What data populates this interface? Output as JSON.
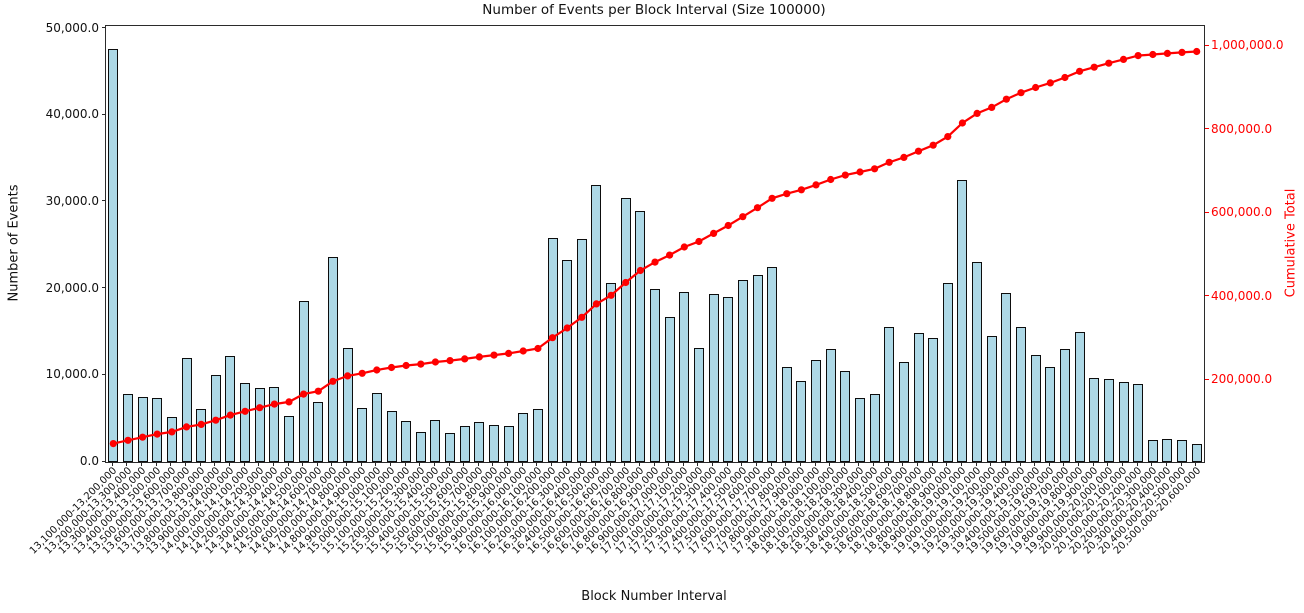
{
  "title": "Number of Events per Block Interval (Size 100000)",
  "axes": {
    "x_label": "Block Number Interval",
    "y_left_label": "Number of Events",
    "y_right_label": "Cumulative Total",
    "y_left_ticks": [
      {
        "value": 0,
        "label": "0.0"
      },
      {
        "value": 10000,
        "label": "10,000.0"
      },
      {
        "value": 20000,
        "label": "20,000.0"
      },
      {
        "value": 30000,
        "label": "30,000.0"
      },
      {
        "value": 40000,
        "label": "40,000.0"
      },
      {
        "value": 50000,
        "label": "50,000.0"
      }
    ],
    "y_right_ticks": [
      {
        "value": 200000,
        "label": "200,000.0"
      },
      {
        "value": 400000,
        "label": "400,000.0"
      },
      {
        "value": 600000,
        "label": "600,000.0"
      },
      {
        "value": 800000,
        "label": "800,000.0"
      },
      {
        "value": 1000000,
        "label": "1,000,000.0"
      }
    ]
  },
  "colors": {
    "bar_fill": "#ADD8E6",
    "bar_edge": "#0d0d0d",
    "line": "#ff0000",
    "right_axis_text": "#ff0000",
    "text": "#111111",
    "spine": "#2b2b2b",
    "background": "#ffffff"
  },
  "chart_data": {
    "type": "bar",
    "title": "Number of Events per Block Interval (Size 100000)",
    "xlabel": "Block Number Interval",
    "ylabel": "Number of Events",
    "ylabel_right": "Cumulative Total",
    "ylim_left": [
      0,
      50000
    ],
    "ylim_right": [
      0,
      1000000
    ],
    "grid": false,
    "legend": false,
    "categories": [
      "13,100,000-13,200,000",
      "13,200,000-13,300,000",
      "13,300,000-13,400,000",
      "13,400,000-13,500,000",
      "13,500,000-13,600,000",
      "13,600,000-13,700,000",
      "13,700,000-13,800,000",
      "13,800,000-13,900,000",
      "13,900,000-14,000,000",
      "14,000,000-14,100,000",
      "14,100,000-14,200,000",
      "14,200,000-14,300,000",
      "14,300,000-14,400,000",
      "14,400,000-14,500,000",
      "14,500,000-14,600,000",
      "14,600,000-14,700,000",
      "14,700,000-14,800,000",
      "14,800,000-14,900,000",
      "14,900,000-15,000,000",
      "15,000,000-15,100,000",
      "15,100,000-15,200,000",
      "15,200,000-15,300,000",
      "15,300,000-15,400,000",
      "15,400,000-15,500,000",
      "15,500,000-15,600,000",
      "15,600,000-15,700,000",
      "15,700,000-15,800,000",
      "15,800,000-15,900,000",
      "15,900,000-16,000,000",
      "16,000,000-16,100,000",
      "16,100,000-16,200,000",
      "16,200,000-16,300,000",
      "16,300,000-16,400,000",
      "16,400,000-16,500,000",
      "16,500,000-16,600,000",
      "16,600,000-16,700,000",
      "16,700,000-16,800,000",
      "16,800,000-16,900,000",
      "16,900,000-17,000,000",
      "17,000,000-17,100,000",
      "17,100,000-17,200,000",
      "17,200,000-17,300,000",
      "17,300,000-17,400,000",
      "17,400,000-17,500,000",
      "17,500,000-17,600,000",
      "17,600,000-17,700,000",
      "17,700,000-17,800,000",
      "17,800,000-17,900,000",
      "17,900,000-18,000,000",
      "18,000,000-18,100,000",
      "18,100,000-18,200,000",
      "18,200,000-18,300,000",
      "18,300,000-18,400,000",
      "18,400,000-18,500,000",
      "18,500,000-18,600,000",
      "18,600,000-18,700,000",
      "18,700,000-18,800,000",
      "18,800,000-18,900,000",
      "18,900,000-19,000,000",
      "19,000,000-19,100,000",
      "19,100,000-19,200,000",
      "19,200,000-19,300,000",
      "19,300,000-19,400,000",
      "19,400,000-19,500,000",
      "19,500,000-19,600,000",
      "19,600,000-19,700,000",
      "19,700,000-19,800,000",
      "19,800,000-19,900,000",
      "19,900,000-20,000,000",
      "20,000,000-20,100,000",
      "20,100,000-20,200,000",
      "20,200,000-20,300,000",
      "20,300,000-20,400,000",
      "20,400,000-20,500,000",
      "20,500,000-20,600,000"
    ],
    "series": [
      {
        "name": "Number of Events",
        "type": "bar",
        "axis": "left",
        "values": [
          47700,
          7900,
          7500,
          7400,
          5200,
          12000,
          6100,
          10100,
          12200,
          9100,
          8500,
          8700,
          5300,
          18600,
          6900,
          23700,
          13100,
          6200,
          8000,
          5900,
          4700,
          3500,
          4900,
          3400,
          4200,
          4600,
          4300,
          4200,
          5700,
          6100,
          25800,
          23300,
          25700,
          32000,
          20700,
          30500,
          29000,
          20000,
          16700,
          19600,
          13100,
          19400,
          19000,
          21000,
          21600,
          22500,
          11000,
          9300,
          11800,
          13000,
          10500,
          7400,
          7800,
          15600,
          11600,
          14900,
          14300,
          20700,
          32500,
          23100,
          14500,
          19500,
          15600,
          12400,
          11000,
          13000,
          15000,
          9700,
          9600,
          9200,
          9000,
          2600,
          2700,
          2500,
          2100
        ]
      },
      {
        "name": "Cumulative Total",
        "type": "line",
        "axis": "right",
        "values": [
          47700,
          55600,
          63100,
          70500,
          75700,
          87700,
          93800,
          103900,
          116100,
          125200,
          133700,
          142400,
          147700,
          166300,
          173200,
          196900,
          210000,
          216200,
          224200,
          230100,
          234800,
          238300,
          243200,
          246600,
          250800,
          255400,
          259700,
          263900,
          269600,
          275700,
          301500,
          324800,
          350500,
          382500,
          403200,
          433700,
          462700,
          482700,
          499400,
          519000,
          532100,
          551500,
          570500,
          591500,
          613100,
          635600,
          646600,
          655900,
          667700,
          680700,
          691200,
          698600,
          706400,
          722000,
          733600,
          748500,
          762800,
          783500,
          816000,
          839100,
          853600,
          873100,
          888700,
          901100,
          912100,
          925100,
          940100,
          949800,
          959400,
          968600,
          977600,
          980200,
          982900,
          985400,
          987500
        ]
      }
    ]
  }
}
